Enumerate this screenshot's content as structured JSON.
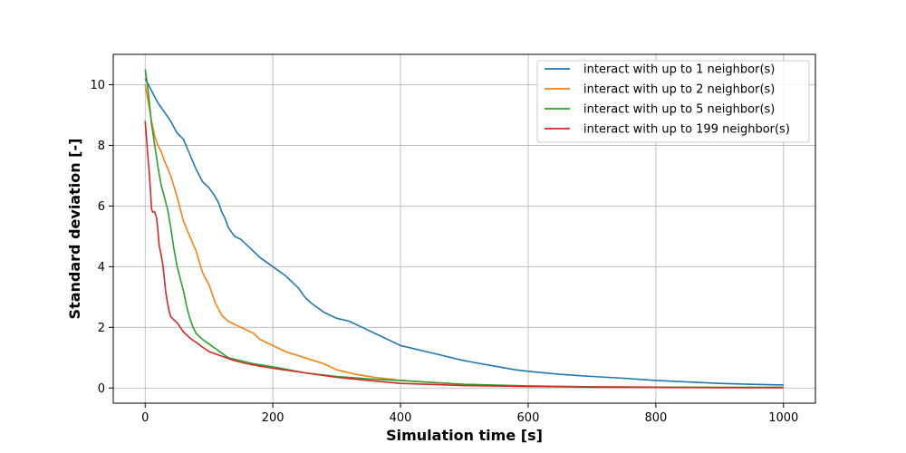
{
  "chart_data": {
    "type": "line",
    "title": "",
    "xlabel": "Simulation time [s]",
    "ylabel": "Standard deviation [-]",
    "xlim": [
      -50,
      1050
    ],
    "ylim": [
      -0.5,
      11
    ],
    "xticks": [
      0,
      200,
      400,
      600,
      800,
      1000
    ],
    "yticks": [
      0,
      2,
      4,
      6,
      8,
      10
    ],
    "grid": true,
    "legend_position": "top-right",
    "series": [
      {
        "name": "interact with up to 1 neighbor(s)",
        "color": "#1f77b4",
        "x": [
          0,
          5,
          10,
          15,
          20,
          30,
          40,
          50,
          60,
          70,
          80,
          90,
          100,
          110,
          115,
          120,
          125,
          130,
          140,
          150,
          160,
          170,
          180,
          200,
          220,
          240,
          250,
          260,
          280,
          300,
          320,
          340,
          360,
          380,
          400,
          420,
          440,
          460,
          480,
          500,
          540,
          580,
          600,
          650,
          700,
          750,
          800,
          850,
          900,
          950,
          1000
        ],
        "y": [
          10.2,
          10.0,
          9.8,
          9.6,
          9.4,
          9.1,
          8.8,
          8.4,
          8.2,
          7.7,
          7.2,
          6.8,
          6.6,
          6.3,
          6.1,
          5.8,
          5.6,
          5.3,
          5.0,
          4.9,
          4.7,
          4.5,
          4.3,
          4.0,
          3.7,
          3.3,
          3.0,
          2.8,
          2.5,
          2.3,
          2.2,
          2.0,
          1.8,
          1.6,
          1.4,
          1.3,
          1.2,
          1.1,
          1.0,
          0.9,
          0.75,
          0.6,
          0.55,
          0.45,
          0.38,
          0.32,
          0.25,
          0.2,
          0.15,
          0.12,
          0.1
        ]
      },
      {
        "name": "interact with up to 2 neighbor(s)",
        "color": "#ff7f0e",
        "x": [
          0,
          5,
          10,
          15,
          20,
          25,
          30,
          40,
          50,
          60,
          70,
          80,
          90,
          100,
          110,
          120,
          130,
          150,
          170,
          180,
          200,
          220,
          250,
          280,
          300,
          330,
          360,
          400,
          450,
          500,
          600,
          700,
          800,
          900,
          1000
        ],
        "y": [
          10.0,
          9.4,
          8.8,
          8.3,
          8.0,
          7.8,
          7.5,
          7.0,
          6.3,
          5.5,
          5.0,
          4.5,
          3.8,
          3.4,
          2.8,
          2.4,
          2.2,
          2.0,
          1.8,
          1.6,
          1.4,
          1.2,
          1.0,
          0.8,
          0.6,
          0.45,
          0.35,
          0.25,
          0.18,
          0.12,
          0.06,
          0.04,
          0.03,
          0.02,
          0.02
        ]
      },
      {
        "name": "interact with up to 5 neighbor(s)",
        "color": "#2ca02c",
        "x": [
          0,
          3,
          6,
          10,
          15,
          20,
          25,
          30,
          35,
          40,
          45,
          50,
          55,
          60,
          65,
          70,
          75,
          80,
          90,
          100,
          110,
          120,
          130,
          150,
          170,
          200,
          250,
          300,
          350,
          400,
          450,
          500,
          600,
          700,
          800,
          900,
          1000
        ],
        "y": [
          10.5,
          10.1,
          9.5,
          8.7,
          8.0,
          7.3,
          6.7,
          6.3,
          5.9,
          5.3,
          4.6,
          4.0,
          3.6,
          3.2,
          2.7,
          2.3,
          2.0,
          1.8,
          1.6,
          1.45,
          1.3,
          1.15,
          1.0,
          0.9,
          0.8,
          0.7,
          0.5,
          0.38,
          0.3,
          0.25,
          0.18,
          0.12,
          0.07,
          0.04,
          0.03,
          0.02,
          0.02
        ]
      },
      {
        "name": "interact with up to 199 neighbor(s)",
        "color": "#d62728",
        "x": [
          0,
          2,
          4,
          6,
          8,
          10,
          12,
          15,
          18,
          20,
          22,
          25,
          28,
          30,
          32,
          35,
          38,
          40,
          45,
          50,
          55,
          60,
          70,
          80,
          90,
          100,
          120,
          140,
          160,
          180,
          200,
          250,
          300,
          350,
          400,
          500,
          600,
          700,
          800,
          900,
          1000
        ],
        "y": [
          8.8,
          8.3,
          7.7,
          7.2,
          6.6,
          5.9,
          5.8,
          5.8,
          5.6,
          5.2,
          4.7,
          4.4,
          4.0,
          3.6,
          3.2,
          2.8,
          2.5,
          2.35,
          2.25,
          2.15,
          2.0,
          1.85,
          1.65,
          1.5,
          1.35,
          1.2,
          1.05,
          0.9,
          0.8,
          0.72,
          0.65,
          0.5,
          0.35,
          0.25,
          0.15,
          0.08,
          0.05,
          0.03,
          0.02,
          0.01,
          0.01
        ]
      }
    ]
  }
}
